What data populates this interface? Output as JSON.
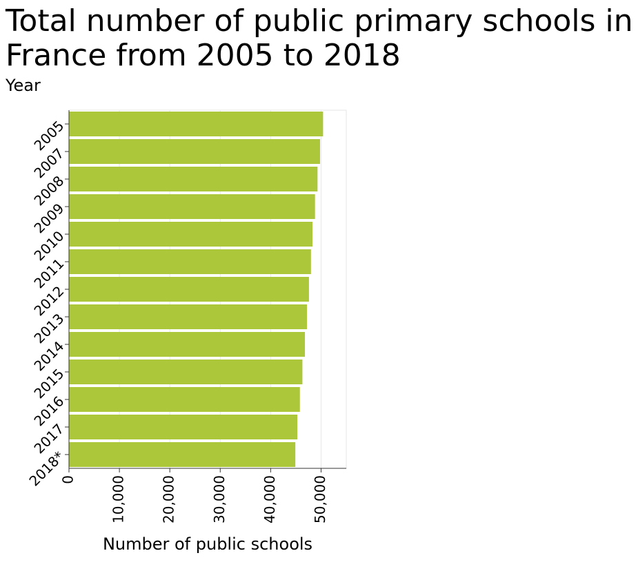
{
  "chart_data": {
    "type": "bar",
    "orientation": "horizontal",
    "title": "Total number of public primary schools in France from 2005 to 2018",
    "xlabel": "Number of public schools",
    "ylabel": "Year",
    "categories": [
      "2005",
      "2007",
      "2008",
      "2009",
      "2010",
      "2011",
      "2012",
      "2013",
      "2014",
      "2015",
      "2016",
      "2017",
      "2018*"
    ],
    "values": [
      50400,
      49800,
      49300,
      48800,
      48300,
      48000,
      47600,
      47200,
      46800,
      46300,
      45800,
      45300,
      44900
    ],
    "xlim": [
      0,
      55000
    ],
    "xticks": [
      0,
      10000,
      20000,
      30000,
      40000,
      50000
    ],
    "xtick_labels": [
      "0",
      "10,000",
      "20,000",
      "30,000",
      "40,000",
      "50,000"
    ],
    "grid": true,
    "bar_color": "#adc73b",
    "grid_color": "#e6e6e6",
    "legend": "none"
  }
}
